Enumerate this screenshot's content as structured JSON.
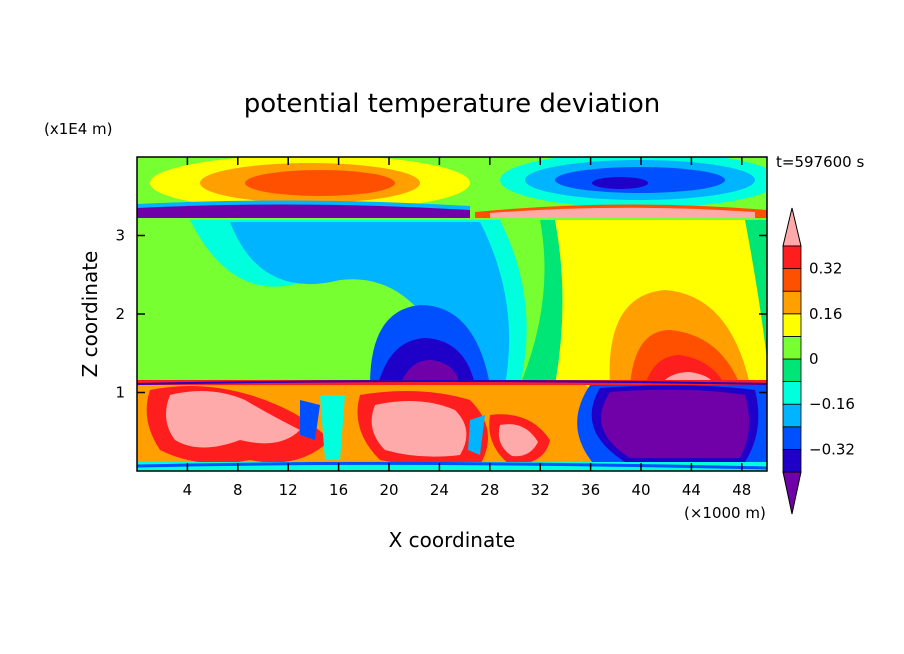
{
  "chart_data": {
    "type": "heatmap",
    "title": "potential temperature deviation",
    "xlabel": "X coordinate",
    "ylabel": "Z coordinate",
    "x_unit": "(×1000 m)",
    "y_unit": "(x1E4 m)",
    "time_label": "t=597600 s",
    "xlim": [
      0,
      50
    ],
    "ylim": [
      0,
      4
    ],
    "x_ticks": [
      4,
      8,
      12,
      16,
      20,
      24,
      28,
      32,
      36,
      40,
      44,
      48
    ],
    "y_ticks": [
      1,
      2,
      3
    ],
    "x_tick_labels": [
      "4",
      "8",
      "12",
      "16",
      "20",
      "24",
      "28",
      "32",
      "36",
      "40",
      "44",
      "48"
    ],
    "y_tick_labels": [
      "1",
      "2",
      "3"
    ],
    "colorbar": {
      "levels": [
        -0.4,
        -0.32,
        -0.24,
        -0.16,
        -0.08,
        0,
        0.08,
        0.16,
        0.24,
        0.32,
        0.4
      ],
      "labeled": [
        0.32,
        0.16,
        0,
        -0.16,
        -0.32
      ],
      "labels": [
        "0.32",
        "0.16",
        "0",
        "−0.16",
        "−0.32"
      ],
      "colors": [
        "#7000a8",
        "#1e00c8",
        "#0050ff",
        "#00b4ff",
        "#00ffdc",
        "#00e676",
        "#78ff32",
        "#ffff00",
        "#ffa000",
        "#ff5000",
        "#ff1e1e",
        "#ffaaaa"
      ],
      "extend": "both"
    },
    "features": [
      {
        "x": 14,
        "z": 3.7,
        "value": 0.24
      },
      {
        "x": 39,
        "z": 3.6,
        "value": -0.28
      },
      {
        "x": 22,
        "z": 1.4,
        "value": -0.3
      },
      {
        "x": 41,
        "z": 1.4,
        "value": 0.32
      },
      {
        "x": 42,
        "z": 0.6,
        "value": -0.4
      },
      {
        "x": 10,
        "z": 0.6,
        "value": 0.4
      },
      {
        "x": 22,
        "z": 0.6,
        "value": 0.4
      }
    ]
  }
}
